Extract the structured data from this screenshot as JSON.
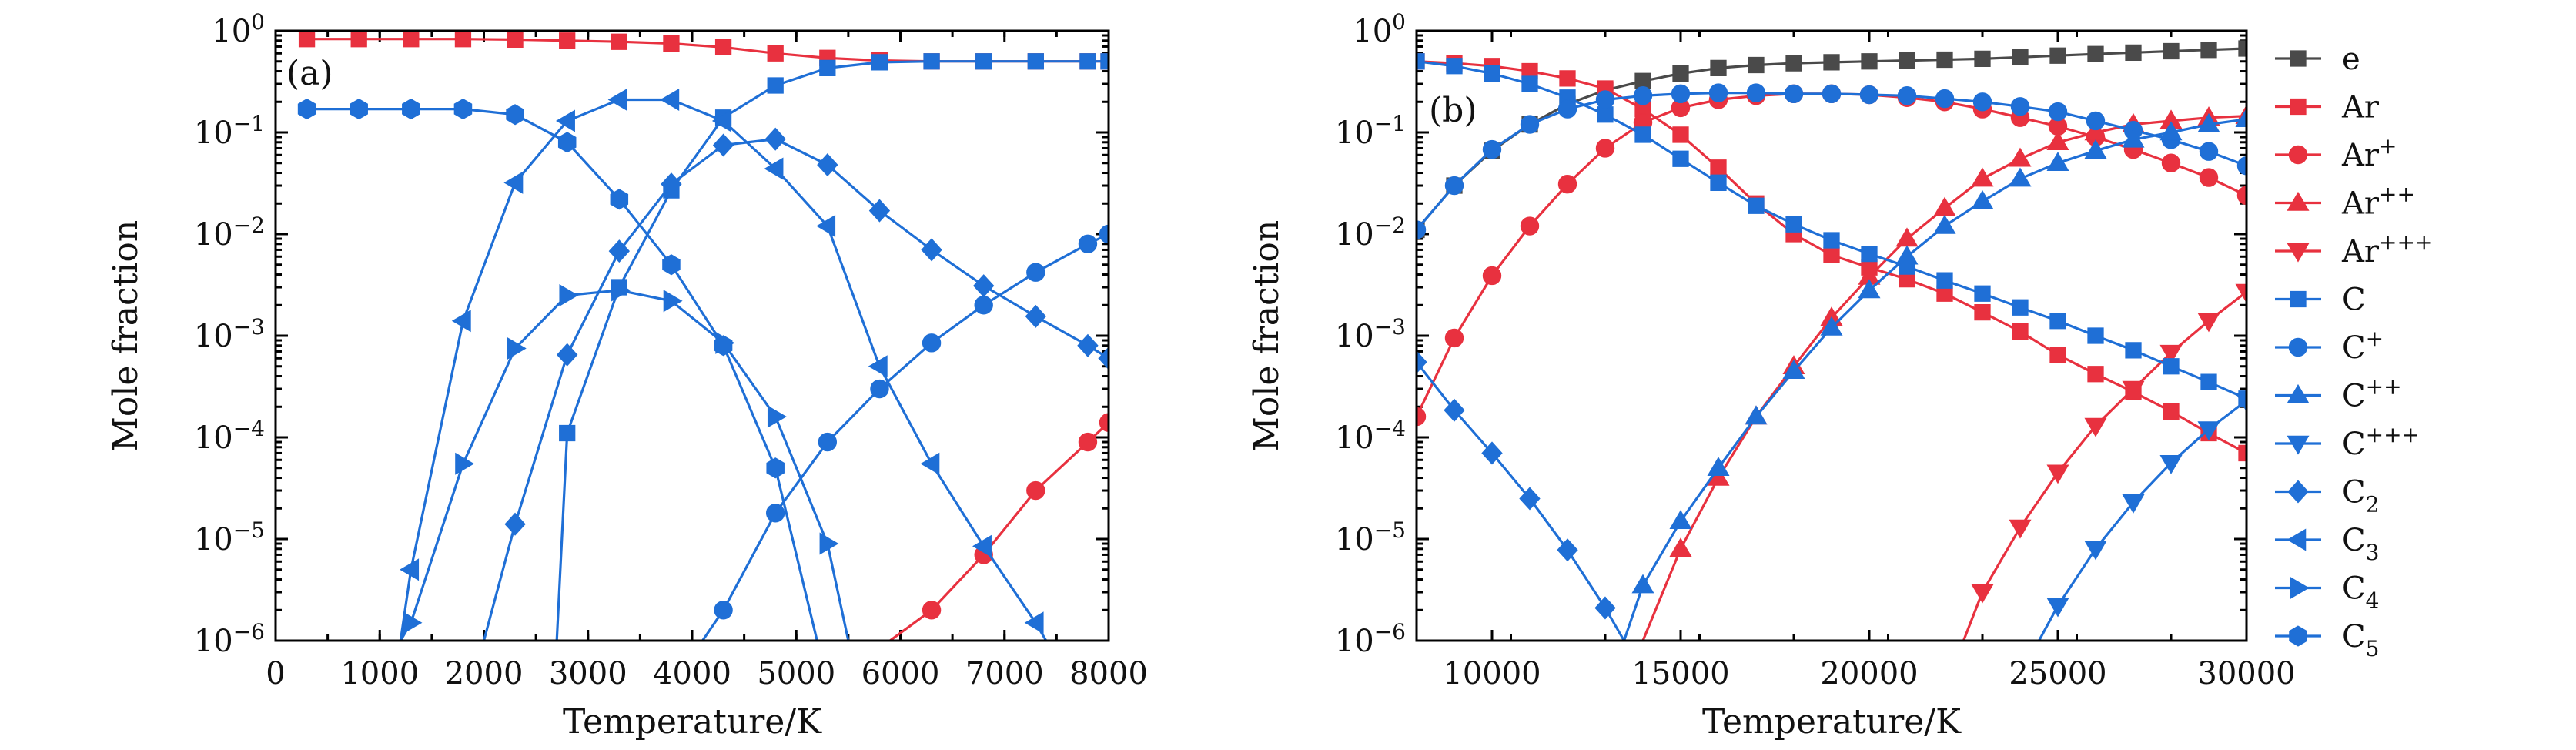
{
  "colors": {
    "e": "#4a4a4a",
    "Ar": "#e8313f",
    "C": "#1f6fd6"
  },
  "legend": [
    {
      "id": "e",
      "label": "e",
      "sup": "",
      "sub": "",
      "color": "#4a4a4a",
      "marker": "square"
    },
    {
      "id": "Ar",
      "label": "Ar",
      "sup": "",
      "sub": "",
      "color": "#e8313f",
      "marker": "square"
    },
    {
      "id": "Ar1",
      "label": "Ar",
      "sup": "+",
      "sub": "",
      "color": "#e8313f",
      "marker": "circle"
    },
    {
      "id": "Ar2",
      "label": "Ar",
      "sup": "++",
      "sub": "",
      "color": "#e8313f",
      "marker": "triangle-up"
    },
    {
      "id": "Ar3",
      "label": "Ar",
      "sup": "+++",
      "sub": "",
      "color": "#e8313f",
      "marker": "triangle-down"
    },
    {
      "id": "C",
      "label": "C",
      "sup": "",
      "sub": "",
      "color": "#1f6fd6",
      "marker": "square"
    },
    {
      "id": "C1",
      "label": "C",
      "sup": "+",
      "sub": "",
      "color": "#1f6fd6",
      "marker": "circle"
    },
    {
      "id": "C2p",
      "label": "C",
      "sup": "++",
      "sub": "",
      "color": "#1f6fd6",
      "marker": "triangle-up"
    },
    {
      "id": "C3p",
      "label": "C",
      "sup": "+++",
      "sub": "",
      "color": "#1f6fd6",
      "marker": "triangle-down"
    },
    {
      "id": "C2",
      "label": "C",
      "sup": "",
      "sub": "2",
      "color": "#1f6fd6",
      "marker": "diamond"
    },
    {
      "id": "C3",
      "label": "C",
      "sup": "",
      "sub": "3",
      "color": "#1f6fd6",
      "marker": "triangle-left"
    },
    {
      "id": "C4",
      "label": "C",
      "sup": "",
      "sub": "4",
      "color": "#1f6fd6",
      "marker": "triangle-right"
    },
    {
      "id": "C5",
      "label": "C",
      "sup": "",
      "sub": "5",
      "color": "#1f6fd6",
      "marker": "hexagon"
    }
  ],
  "chart_data": [
    {
      "panel": "(a)",
      "type": "line",
      "xlabel": "Temperature/K",
      "ylabel": "Mole fraction",
      "xlim": [
        0,
        8000
      ],
      "ylim": [
        1e-06,
        1
      ],
      "yscale": "log",
      "xticks": [
        0,
        1000,
        2000,
        3000,
        4000,
        5000,
        6000,
        7000,
        8000
      ],
      "yticks": [
        {
          "base": "10",
          "exp": "0",
          "value": 1
        },
        {
          "base": "10",
          "exp": "−1",
          "value": 0.1
        },
        {
          "base": "10",
          "exp": "−2",
          "value": 0.01
        },
        {
          "base": "10",
          "exp": "−3",
          "value": 0.001
        },
        {
          "base": "10",
          "exp": "−4",
          "value": 0.0001
        },
        {
          "base": "10",
          "exp": "−5",
          "value": 1e-05
        },
        {
          "base": "10",
          "exp": "−6",
          "value": 1e-06
        }
      ],
      "series": [
        {
          "id": "Ar",
          "x": [
            300,
            800,
            1300,
            1800,
            2300,
            2800,
            3300,
            3800,
            4300,
            4800,
            5300,
            5800,
            6300,
            6800,
            7300,
            7800,
            8000
          ],
          "y": [
            0.83,
            0.83,
            0.83,
            0.83,
            0.82,
            0.8,
            0.78,
            0.75,
            0.69,
            0.6,
            0.54,
            0.51,
            0.5,
            0.5,
            0.5,
            0.5,
            0.5
          ]
        },
        {
          "id": "Ar1",
          "x": [
            5900,
            6300,
            6800,
            7300,
            7800,
            8000
          ],
          "y": [
            1e-06,
            2e-06,
            7e-06,
            3e-05,
            9e-05,
            0.00014
          ]
        },
        {
          "id": "C",
          "x": [
            2700,
            2800,
            3300,
            3800,
            4300,
            4800,
            5300,
            5800,
            6300,
            6800,
            7300,
            7800,
            8000
          ],
          "y": [
            1e-06,
            0.00011,
            0.003,
            0.027,
            0.14,
            0.29,
            0.43,
            0.49,
            0.5,
            0.5,
            0.5,
            0.5,
            0.5
          ]
        },
        {
          "id": "C1",
          "x": [
            4100,
            4300,
            4800,
            5300,
            5800,
            6300,
            6800,
            7300,
            7800,
            8000
          ],
          "y": [
            1e-06,
            2e-06,
            1.8e-05,
            9e-05,
            0.0003,
            0.00085,
            0.002,
            0.0042,
            0.008,
            0.01
          ]
        },
        {
          "id": "C2",
          "x": [
            2000,
            2300,
            2800,
            3300,
            3800,
            4300,
            4800,
            5300,
            5800,
            6300,
            6800,
            7300,
            7800,
            8000
          ],
          "y": [
            1e-06,
            1.4e-05,
            0.00065,
            0.0068,
            0.031,
            0.075,
            0.086,
            0.048,
            0.017,
            0.007,
            0.0031,
            0.00155,
            0.0008,
            0.0006
          ]
        },
        {
          "id": "C3",
          "x": [
            1200,
            1300,
            1800,
            2300,
            2800,
            3300,
            3800,
            4300,
            4800,
            5300,
            5800,
            6300,
            6800,
            7300,
            7400
          ],
          "y": [
            1e-06,
            5e-06,
            0.0014,
            0.032,
            0.13,
            0.21,
            0.21,
            0.13,
            0.044,
            0.012,
            0.0005,
            5.5e-05,
            8.5e-06,
            1.5e-06,
            1e-06
          ]
        },
        {
          "id": "C4",
          "x": [
            1200,
            1300,
            1800,
            2300,
            2800,
            3300,
            3800,
            4300,
            4800,
            5300,
            5500
          ],
          "y": [
            1e-06,
            1.5e-06,
            5.5e-05,
            0.00075,
            0.0025,
            0.0028,
            0.0022,
            0.00085,
            0.00016,
            9e-06,
            1e-06
          ]
        },
        {
          "id": "C5",
          "x": [
            300,
            800,
            1300,
            1800,
            2300,
            2800,
            3300,
            3800,
            4300,
            4800,
            5200
          ],
          "y": [
            0.17,
            0.17,
            0.17,
            0.17,
            0.15,
            0.08,
            0.022,
            0.005,
            0.0008,
            5e-05,
            1e-06
          ]
        }
      ]
    },
    {
      "panel": "(b)",
      "type": "line",
      "xlabel": "Temperature/K",
      "ylabel": "Mole fraction",
      "xlim": [
        8000,
        30000
      ],
      "ylim": [
        1e-06,
        1
      ],
      "yscale": "log",
      "xticks": [
        10000,
        15000,
        20000,
        25000,
        30000
      ],
      "yticks": [
        {
          "base": "10",
          "exp": "0",
          "value": 1
        },
        {
          "base": "10",
          "exp": "−1",
          "value": 0.1
        },
        {
          "base": "10",
          "exp": "−2",
          "value": 0.01
        },
        {
          "base": "10",
          "exp": "−3",
          "value": 0.001
        },
        {
          "base": "10",
          "exp": "−4",
          "value": 0.0001
        },
        {
          "base": "10",
          "exp": "−5",
          "value": 1e-05
        },
        {
          "base": "10",
          "exp": "−6",
          "value": 1e-06
        }
      ],
      "series": [
        {
          "id": "e",
          "x": [
            8000,
            9000,
            10000,
            11000,
            12000,
            13000,
            14000,
            15000,
            16000,
            17000,
            18000,
            19000,
            20000,
            21000,
            22000,
            23000,
            24000,
            25000,
            26000,
            27000,
            28000,
            29000,
            30000
          ],
          "y": [
            0.011,
            0.03,
            0.066,
            0.12,
            0.19,
            0.26,
            0.32,
            0.38,
            0.43,
            0.46,
            0.48,
            0.49,
            0.5,
            0.51,
            0.52,
            0.53,
            0.55,
            0.57,
            0.59,
            0.61,
            0.63,
            0.65,
            0.67
          ]
        },
        {
          "id": "Ar",
          "x": [
            8000,
            9000,
            10000,
            11000,
            12000,
            13000,
            14000,
            15000,
            16000,
            17000,
            18000,
            19000,
            20000,
            21000,
            22000,
            23000,
            24000,
            25000,
            26000,
            27000,
            28000,
            29000,
            30000
          ],
          "y": [
            0.5,
            0.48,
            0.45,
            0.4,
            0.34,
            0.27,
            0.17,
            0.095,
            0.045,
            0.02,
            0.01,
            0.0062,
            0.0047,
            0.0036,
            0.0026,
            0.0017,
            0.0011,
            0.00065,
            0.00042,
            0.00028,
            0.00018,
            0.00011,
            7e-05
          ]
        },
        {
          "id": "Ar1",
          "x": [
            8000,
            9000,
            10000,
            11000,
            12000,
            13000,
            14000,
            15000,
            16000,
            17000,
            18000,
            19000,
            20000,
            21000,
            22000,
            23000,
            24000,
            25000,
            26000,
            27000,
            28000,
            29000,
            30000
          ],
          "y": [
            0.00016,
            0.00095,
            0.0039,
            0.012,
            0.031,
            0.07,
            0.125,
            0.175,
            0.21,
            0.23,
            0.24,
            0.24,
            0.235,
            0.22,
            0.2,
            0.17,
            0.14,
            0.115,
            0.09,
            0.068,
            0.05,
            0.036,
            0.024
          ]
        },
        {
          "id": "Ar2",
          "x": [
            14000,
            15000,
            16000,
            17000,
            18000,
            19000,
            20000,
            21000,
            22000,
            23000,
            24000,
            25000,
            26000,
            27000,
            28000,
            29000,
            30000
          ],
          "y": [
            1e-06,
            8e-06,
            4e-05,
            0.00016,
            0.0005,
            0.0015,
            0.0038,
            0.009,
            0.018,
            0.035,
            0.055,
            0.08,
            0.1,
            0.12,
            0.13,
            0.14,
            0.145
          ]
        },
        {
          "id": "Ar3",
          "x": [
            22500,
            23000,
            24000,
            25000,
            26000,
            27000,
            28000,
            29000,
            30000
          ],
          "y": [
            1e-06,
            3e-06,
            1.3e-05,
            4.5e-05,
            0.00013,
            0.0003,
            0.00068,
            0.0014,
            0.0027
          ]
        },
        {
          "id": "C",
          "x": [
            8000,
            9000,
            10000,
            11000,
            12000,
            13000,
            14000,
            15000,
            16000,
            17000,
            18000,
            19000,
            20000,
            21000,
            22000,
            23000,
            24000,
            25000,
            26000,
            27000,
            28000,
            29000,
            30000
          ],
          "y": [
            0.5,
            0.45,
            0.38,
            0.3,
            0.22,
            0.15,
            0.095,
            0.055,
            0.032,
            0.019,
            0.0125,
            0.0087,
            0.0064,
            0.0048,
            0.0035,
            0.0026,
            0.0019,
            0.0014,
            0.001,
            0.00072,
            0.0005,
            0.00035,
            0.00024
          ]
        },
        {
          "id": "C1",
          "x": [
            8000,
            9000,
            10000,
            11000,
            12000,
            13000,
            14000,
            15000,
            16000,
            17000,
            18000,
            19000,
            20000,
            21000,
            22000,
            23000,
            24000,
            25000,
            26000,
            27000,
            28000,
            29000,
            30000
          ],
          "y": [
            0.011,
            0.03,
            0.068,
            0.12,
            0.17,
            0.21,
            0.23,
            0.24,
            0.245,
            0.245,
            0.24,
            0.24,
            0.235,
            0.23,
            0.215,
            0.2,
            0.18,
            0.16,
            0.13,
            0.105,
            0.085,
            0.065,
            0.047
          ]
        },
        {
          "id": "C2p",
          "x": [
            13500,
            14000,
            15000,
            16000,
            17000,
            18000,
            19000,
            20000,
            21000,
            22000,
            23000,
            24000,
            25000,
            26000,
            27000,
            28000,
            29000,
            30000
          ],
          "y": [
            1e-06,
            3.5e-06,
            1.5e-05,
            5e-05,
            0.00016,
            0.00045,
            0.0012,
            0.0028,
            0.006,
            0.012,
            0.021,
            0.035,
            0.05,
            0.066,
            0.085,
            0.1,
            0.12,
            0.135
          ]
        },
        {
          "id": "C3p",
          "x": [
            24500,
            25000,
            26000,
            27000,
            28000,
            29000,
            30000
          ],
          "y": [
            1e-06,
            2.2e-06,
            8e-06,
            2.3e-05,
            5.6e-05,
            0.00012,
            0.00023
          ]
        },
        {
          "id": "C2",
          "x": [
            8000,
            9000,
            10000,
            11000,
            12000,
            13000,
            13500
          ],
          "y": [
            0.00055,
            0.000185,
            7e-05,
            2.5e-05,
            7.8e-06,
            2.1e-06,
            1e-06
          ]
        }
      ]
    }
  ]
}
